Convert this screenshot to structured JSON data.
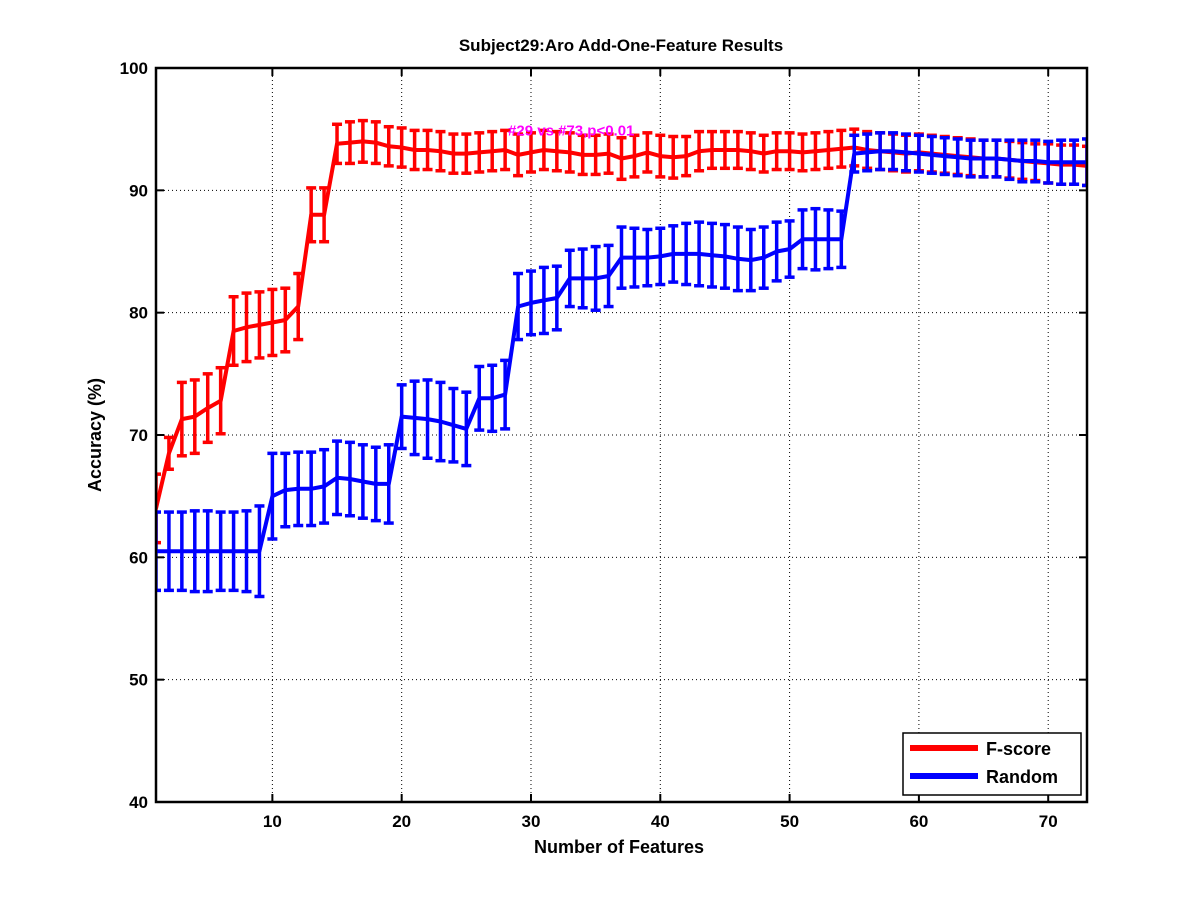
{
  "chart_data": {
    "type": "line",
    "title": "Subject29:Aro Add-One-Feature Results",
    "xlabel": "Number of Features",
    "ylabel": "Accuracy (%)",
    "xlim": [
      1,
      73
    ],
    "ylim": [
      40,
      100
    ],
    "xticks": [
      10,
      20,
      30,
      40,
      50,
      60,
      70
    ],
    "yticks": [
      40,
      50,
      60,
      70,
      80,
      90,
      100
    ],
    "grid": true,
    "legend_position": "bottom-right",
    "annotation": {
      "text": "#29 vs #73,p<0.01",
      "x": 29,
      "y": 94.9,
      "color": "#ff00ff"
    },
    "series": [
      {
        "name": "F-score",
        "color": "#ff0000",
        "mean": [
          64.0,
          68.5,
          71.3,
          71.5,
          72.2,
          72.8,
          78.5,
          78.8,
          79.0,
          79.2,
          79.4,
          80.5,
          88.0,
          88.0,
          93.8,
          93.9,
          94.0,
          93.9,
          93.6,
          93.5,
          93.3,
          93.3,
          93.2,
          93.0,
          93.0,
          93.1,
          93.2,
          93.3,
          92.9,
          93.1,
          93.3,
          93.2,
          93.1,
          92.9,
          92.9,
          93.0,
          92.6,
          92.8,
          93.1,
          92.8,
          92.7,
          92.8,
          93.2,
          93.3,
          93.3,
          93.3,
          93.2,
          93.0,
          93.2,
          93.2,
          93.1,
          93.2,
          93.3,
          93.4,
          93.5,
          93.3,
          93.2,
          93.1,
          93.0,
          93.1,
          93.0,
          92.9,
          92.8,
          92.7,
          92.6,
          92.6,
          92.5,
          92.4,
          92.3,
          92.2,
          92.1,
          92.1,
          92.0
        ],
        "error": [
          2.8,
          1.3,
          3.0,
          3.0,
          2.8,
          2.7,
          2.8,
          2.8,
          2.7,
          2.7,
          2.6,
          2.7,
          2.2,
          2.2,
          1.6,
          1.7,
          1.7,
          1.7,
          1.6,
          1.6,
          1.6,
          1.6,
          1.6,
          1.6,
          1.6,
          1.6,
          1.6,
          1.6,
          1.7,
          1.6,
          1.6,
          1.6,
          1.6,
          1.6,
          1.6,
          1.6,
          1.7,
          1.7,
          1.6,
          1.7,
          1.7,
          1.6,
          1.6,
          1.5,
          1.5,
          1.5,
          1.5,
          1.5,
          1.5,
          1.5,
          1.5,
          1.5,
          1.5,
          1.5,
          1.5,
          1.5,
          1.5,
          1.5,
          1.5,
          1.5,
          1.5,
          1.5,
          1.5,
          1.5,
          1.5,
          1.5,
          1.5,
          1.5,
          1.5,
          1.6,
          1.6,
          1.6,
          1.6
        ]
      },
      {
        "name": "Random",
        "color": "#0000ff",
        "mean": [
          60.5,
          60.5,
          60.5,
          60.5,
          60.5,
          60.5,
          60.5,
          60.5,
          60.5,
          65.0,
          65.5,
          65.6,
          65.6,
          65.8,
          66.5,
          66.4,
          66.2,
          66.0,
          66.0,
          71.5,
          71.4,
          71.3,
          71.1,
          70.8,
          70.5,
          73.0,
          73.0,
          73.3,
          80.5,
          80.8,
          81.0,
          81.2,
          82.8,
          82.8,
          82.8,
          83.0,
          84.5,
          84.5,
          84.5,
          84.6,
          84.8,
          84.8,
          84.8,
          84.7,
          84.6,
          84.4,
          84.3,
          84.5,
          85.0,
          85.2,
          86.0,
          86.0,
          86.0,
          86.0,
          93.0,
          93.1,
          93.2,
          93.2,
          93.1,
          93.0,
          92.9,
          92.8,
          92.7,
          92.6,
          92.6,
          92.6,
          92.5,
          92.4,
          92.4,
          92.3,
          92.3,
          92.3,
          92.3
        ],
        "error": [
          3.2,
          3.2,
          3.2,
          3.3,
          3.3,
          3.2,
          3.2,
          3.3,
          3.7,
          3.5,
          3.0,
          3.0,
          3.0,
          3.0,
          3.0,
          3.0,
          3.0,
          3.0,
          3.2,
          2.6,
          3.0,
          3.2,
          3.2,
          3.0,
          3.0,
          2.6,
          2.7,
          2.8,
          2.7,
          2.6,
          2.7,
          2.6,
          2.3,
          2.4,
          2.6,
          2.5,
          2.5,
          2.4,
          2.3,
          2.3,
          2.3,
          2.5,
          2.6,
          2.6,
          2.6,
          2.6,
          2.5,
          2.5,
          2.4,
          2.3,
          2.4,
          2.5,
          2.4,
          2.3,
          1.5,
          1.5,
          1.5,
          1.5,
          1.5,
          1.5,
          1.5,
          1.5,
          1.5,
          1.5,
          1.5,
          1.5,
          1.6,
          1.7,
          1.7,
          1.7,
          1.8,
          1.8,
          1.9
        ]
      }
    ]
  }
}
